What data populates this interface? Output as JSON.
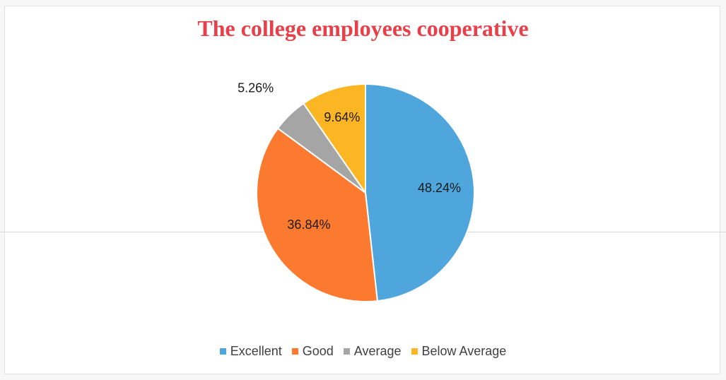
{
  "chart_data": {
    "type": "pie",
    "title": "The college employees cooperative",
    "title_color": "#e8404a",
    "categories": [
      "Excellent",
      "Good",
      "Average",
      "Below Average"
    ],
    "values": [
      48.24,
      36.84,
      5.26,
      9.64
    ],
    "labels": [
      "48.24%",
      "36.84%",
      "5.26%",
      "9.64%"
    ],
    "colors": [
      "#4ea6dc",
      "#fb7a2f",
      "#a5a5a5",
      "#fdb623"
    ],
    "legend_position": "bottom",
    "start_angle_deg": 0,
    "direction": "clockwise"
  }
}
